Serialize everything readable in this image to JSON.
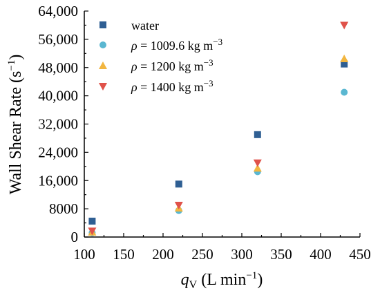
{
  "chart_data": {
    "type": "scatter",
    "xlabel": {
      "main": "q",
      "sub": "V",
      "unit_prefix": " (L min",
      "unit_exp": "−1",
      "unit_suffix": ")"
    },
    "ylabel": {
      "main": "Wall Shear Rate (s",
      "exp": "−1",
      "suffix": ")"
    },
    "xlim": [
      100,
      450
    ],
    "ylim": [
      0,
      64000
    ],
    "xticks": [
      100,
      150,
      200,
      250,
      300,
      350,
      400,
      450
    ],
    "xtick_labels": [
      "100",
      "150",
      "200",
      "250",
      "300",
      "350",
      "400",
      "450"
    ],
    "yticks": [
      0,
      8000,
      16000,
      24000,
      32000,
      40000,
      48000,
      56000,
      64000
    ],
    "ytick_labels": [
      "0",
      "8000",
      "16,000",
      "24,000",
      "32,000",
      "40,000",
      "48,000",
      "56,000",
      "64,000"
    ],
    "grid": false,
    "legend_position": "top-left",
    "series": [
      {
        "label": {
          "text": "water"
        },
        "marker": "square",
        "color": "#2f5f93",
        "x": [
          110,
          220,
          320,
          430
        ],
        "y": [
          4500,
          15000,
          29000,
          49000
        ]
      },
      {
        "label": {
          "sym": "ρ",
          "text": " = 1009.6 kg m",
          "exp": "−3"
        },
        "marker": "circle",
        "color": "#5ab7d1",
        "x": [
          110,
          220,
          320,
          430
        ],
        "y": [
          1200,
          7500,
          18500,
          41000
        ]
      },
      {
        "label": {
          "sym": "ρ",
          "text": " = 1200 kg m",
          "exp": "−3"
        },
        "marker": "triangle-up",
        "color": "#f2b640",
        "x": [
          110,
          220,
          320,
          430
        ],
        "y": [
          1400,
          8200,
          19500,
          50500
        ]
      },
      {
        "label": {
          "sym": "ρ",
          "text": " = 1400 kg m",
          "exp": "−3"
        },
        "marker": "triangle-down",
        "color": "#e0524a",
        "x": [
          110,
          220,
          320,
          430
        ],
        "y": [
          1700,
          9000,
          21000,
          60000
        ]
      }
    ]
  }
}
